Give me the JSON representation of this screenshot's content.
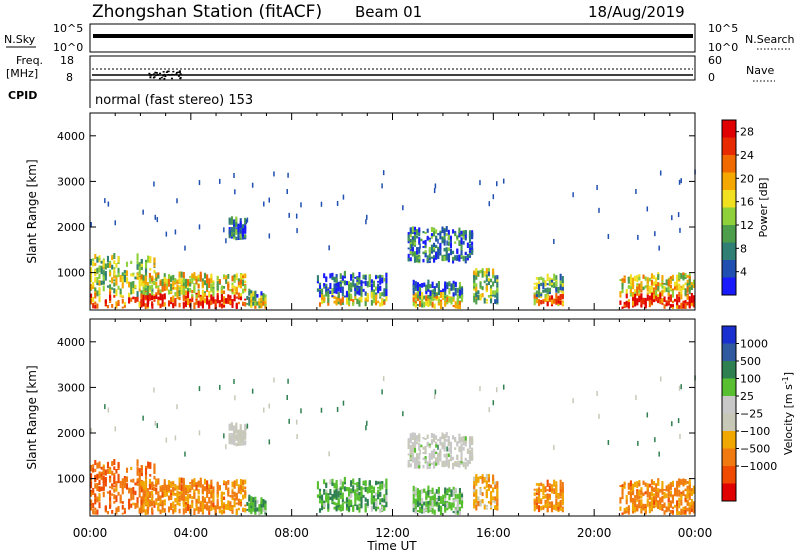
{
  "header": {
    "station": "Zhongshan Station (fitACF)",
    "beam": "Beam 01",
    "date": "18/Aug/2019"
  },
  "top_panels": {
    "nsky_label": "N.Sky",
    "nsky_tick_top": "10^5",
    "nsky_tick_bottom": "10^0",
    "nsearch_label": "N.Search",
    "nsearch_tick_top": "10^5",
    "nsearch_tick_bottom": "10^0",
    "freq_label_1": "Freq.",
    "freq_label_2": "[MHz]",
    "freq_tick_top": "18",
    "freq_tick_bottom": "8",
    "nave_label": "Nave",
    "nave_tick_top": "60",
    "nave_tick_bottom": "0",
    "cpid_label": "CPID",
    "cpid_text": "normal (fast stereo) 153"
  },
  "colors": {
    "power": [
      "#1a1aff",
      "#1f4fb0",
      "#2f7f74",
      "#4d9e4a",
      "#8fd13a",
      "#f0e020",
      "#f5a800",
      "#f06a00",
      "#e82a00",
      "#e00000"
    ],
    "velocity": [
      "#e00000",
      "#f04a00",
      "#f07a10",
      "#f0a800",
      "#c8c8b8",
      "#c8c8c8",
      "#58c030",
      "#2f8050",
      "#305aa0",
      "#1a2fd0"
    ]
  },
  "chart_data": [
    {
      "type": "heatmap",
      "name": "power",
      "xlabel": "",
      "ylabel": "Slant Range [km]",
      "x_ticks": [
        "00:00",
        "04:00",
        "08:00",
        "12:00",
        "16:00",
        "20:00",
        "00:00"
      ],
      "xlim_hours": [
        0,
        24
      ],
      "y_ticks": [
        1000,
        2000,
        3000,
        4000
      ],
      "ylim": [
        180,
        4500
      ],
      "colorbar_label": "Power [dB]",
      "colorbar_ticks": [
        "4",
        "8",
        "12",
        "16",
        "20",
        "24",
        "28"
      ],
      "colorbar_range": [
        0,
        30
      ]
    },
    {
      "type": "heatmap",
      "name": "velocity",
      "xlabel": "Time UT",
      "ylabel": "Slant Range [km]",
      "x_ticks": [
        "00:00",
        "04:00",
        "08:00",
        "12:00",
        "16:00",
        "20:00",
        "00:00"
      ],
      "xlim_hours": [
        0,
        24
      ],
      "y_ticks": [
        1000,
        2000,
        3000,
        4000
      ],
      "ylim": [
        180,
        4500
      ],
      "colorbar_label": "Velocity [m s",
      "colorbar_label_sup": "-1",
      "colorbar_label_end": "]",
      "colorbar_ticks": [
        "1000",
        "500",
        "100",
        "25",
        "−25",
        "−100",
        "−500",
        "−1000"
      ]
    }
  ],
  "echo_regions_hours_km": [
    {
      "t0": 0.0,
      "t1": 2.6,
      "r0": 200,
      "r1": 1300,
      "pw": 0.45,
      "vel": -0.55
    },
    {
      "t0": 2.0,
      "t1": 6.2,
      "r0": 200,
      "r1": 900,
      "pw": 0.55,
      "vel": -0.45
    },
    {
      "t0": 5.5,
      "t1": 6.2,
      "r0": 1700,
      "r1": 2100,
      "pw": 0.2,
      "vel": 0.0
    },
    {
      "t0": 6.2,
      "t1": 7.0,
      "r0": 200,
      "r1": 500,
      "pw": 0.15,
      "vel": 0.3
    },
    {
      "t0": 9.0,
      "t1": 11.8,
      "r0": 250,
      "r1": 900,
      "pw": 0.2,
      "vel": 0.35
    },
    {
      "t0": 12.6,
      "t1": 15.2,
      "r0": 1200,
      "r1": 1900,
      "pw": 0.22,
      "vel": 0.05
    },
    {
      "t0": 12.8,
      "t1": 14.8,
      "r0": 200,
      "r1": 700,
      "pw": 0.2,
      "vel": 0.3
    },
    {
      "t0": 15.2,
      "t1": 16.2,
      "r0": 300,
      "r1": 1000,
      "pw": 0.4,
      "vel": -0.3
    },
    {
      "t0": 17.6,
      "t1": 18.8,
      "r0": 250,
      "r1": 850,
      "pw": 0.35,
      "vel": -0.45
    },
    {
      "t0": 21.0,
      "t1": 24.0,
      "r0": 200,
      "r1": 900,
      "pw": 0.55,
      "vel": -0.45
    }
  ]
}
